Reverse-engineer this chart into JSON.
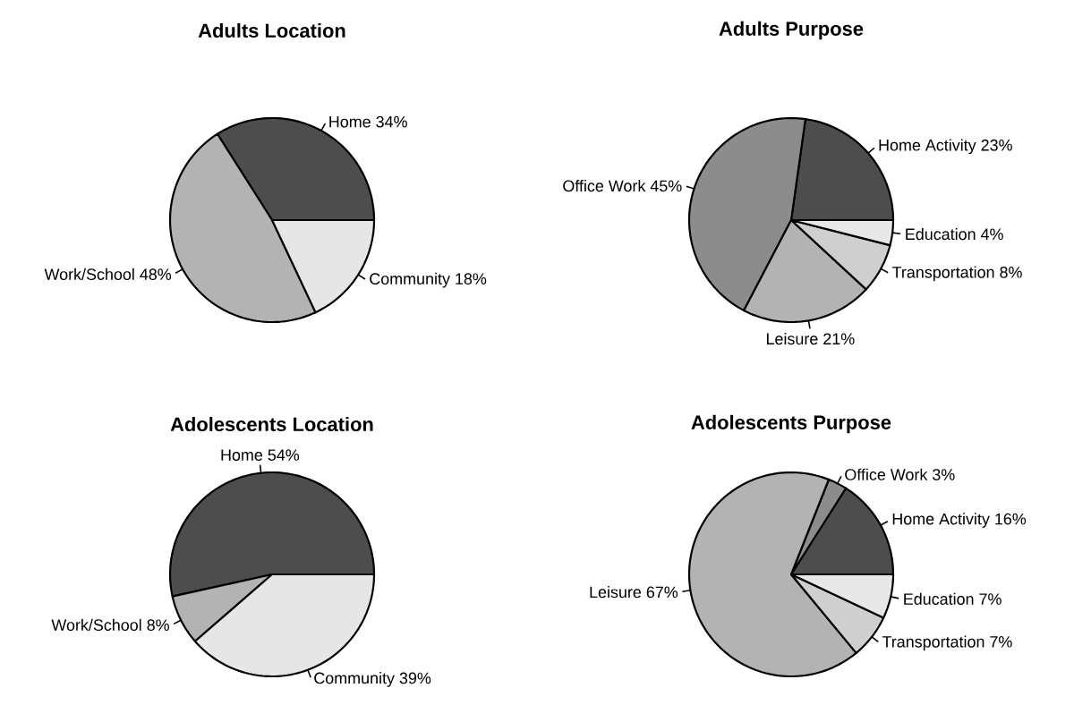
{
  "chart_data": [
    {
      "type": "pie",
      "title": "Adults Location",
      "categories": [
        "Home",
        "Work/School",
        "Community"
      ],
      "values": [
        34,
        48,
        18
      ],
      "value_labels": [
        "34%",
        "48%",
        "18%"
      ],
      "colors": [
        "#4d4d4d",
        "#b3b3b3",
        "#e6e6e6"
      ]
    },
    {
      "type": "pie",
      "title": "Adults Purpose",
      "categories": [
        "Home Activity",
        "Office Work",
        "Leisure",
        "Transportation",
        "Education"
      ],
      "values": [
        23,
        45,
        21,
        8,
        4
      ],
      "value_labels": [
        "23%",
        "45%",
        "21%",
        "8%",
        "4%"
      ],
      "colors": [
        "#4d4d4d",
        "#8c8c8c",
        "#b3b3b3",
        "#cfcfcf",
        "#e8e8e8"
      ]
    },
    {
      "type": "pie",
      "title": "Adolescents Location",
      "categories": [
        "Home",
        "Work/School",
        "Community"
      ],
      "values": [
        54,
        8,
        39
      ],
      "value_labels": [
        "54%",
        "8%",
        "39%"
      ],
      "colors": [
        "#4d4d4d",
        "#b3b3b3",
        "#e6e6e6"
      ]
    },
    {
      "type": "pie",
      "title": "Adolescents Purpose",
      "categories": [
        "Home Activity",
        "Office Work",
        "Leisure",
        "Transportation",
        "Education"
      ],
      "values": [
        16,
        3,
        67,
        7,
        7
      ],
      "value_labels": [
        "16%",
        "3%",
        "67%",
        "7%",
        "7%"
      ],
      "colors": [
        "#4d4d4d",
        "#8c8c8c",
        "#b3b3b3",
        "#cfcfcf",
        "#e8e8e8"
      ]
    }
  ]
}
